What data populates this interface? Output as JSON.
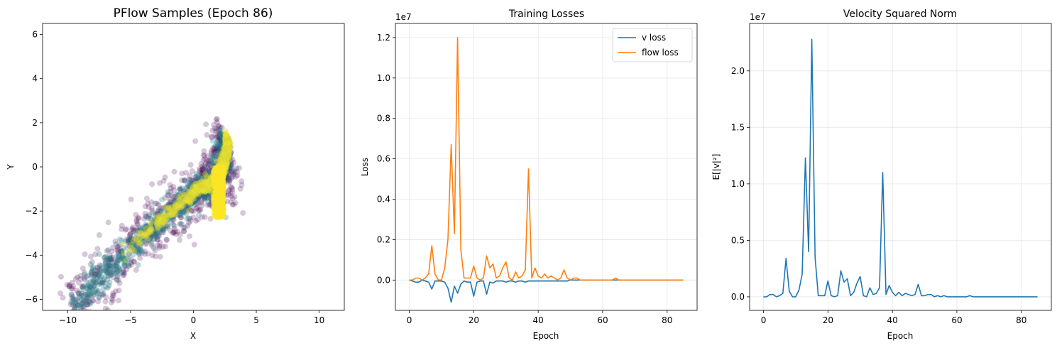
{
  "figure": {
    "background": "#ffffff"
  },
  "chart_data": [
    {
      "type": "scatter",
      "title": "PFlow Samples (Epoch 86)",
      "xlabel": "X",
      "ylabel": "Y",
      "xlim": [
        -12,
        12
      ],
      "ylim": [
        -6.5,
        6.5
      ],
      "xticks": [
        -10,
        -5,
        0,
        5,
        10
      ],
      "yticks": [
        -6,
        -4,
        -2,
        0,
        2,
        4,
        6
      ],
      "grid": false,
      "colormap": "viridis",
      "colors": {
        "low": "#440154",
        "mid": "#21918c",
        "high": "#fde725"
      },
      "band": {
        "centers": [
          [
            -9.5,
            -6.6
          ],
          [
            -7.0,
            -4.8
          ],
          [
            -4.5,
            -3.4
          ],
          [
            -2.0,
            -2.2
          ],
          [
            0.0,
            -1.2
          ],
          [
            1.4,
            -0.8
          ],
          [
            2.0,
            -0.3
          ],
          [
            2.4,
            0.5
          ],
          [
            2.5,
            1.2
          ]
        ],
        "width": 1.3
      }
    },
    {
      "type": "line",
      "title": "Training Losses",
      "xlabel": "Epoch",
      "ylabel": "Loss",
      "offset_text": "1e7",
      "xlim": [
        -4.3,
        89.3
      ],
      "ylim": [
        -0.15,
        1.27
      ],
      "xticks": [
        0,
        20,
        40,
        60,
        80
      ],
      "yticks": [
        0.0,
        0.2,
        0.4,
        0.6,
        0.8,
        1.0,
        1.2
      ],
      "ytick_labels": [
        "0.0",
        "0.2",
        "0.4",
        "0.6",
        "0.8",
        "1.0",
        "1.2"
      ],
      "grid": true,
      "legend": {
        "position": "top-right",
        "entries": [
          "v loss",
          "flow loss"
        ]
      },
      "x": [
        0,
        1,
        2,
        3,
        4,
        5,
        6,
        7,
        8,
        9,
        10,
        11,
        12,
        13,
        14,
        15,
        16,
        17,
        18,
        19,
        20,
        21,
        22,
        23,
        24,
        25,
        26,
        27,
        28,
        29,
        30,
        31,
        32,
        33,
        34,
        35,
        36,
        37,
        38,
        39,
        40,
        41,
        42,
        43,
        44,
        45,
        46,
        47,
        48,
        49,
        50,
        51,
        52,
        53,
        54,
        55,
        56,
        57,
        58,
        59,
        60,
        61,
        62,
        63,
        64,
        65,
        66,
        67,
        68,
        69,
        70,
        71,
        72,
        73,
        74,
        75,
        76,
        77,
        78,
        79,
        80,
        81,
        82,
        83,
        84,
        85
      ],
      "series": [
        {
          "name": "v loss",
          "color": "#1f77b4",
          "values": [
            0,
            -0.005,
            -0.01,
            -0.01,
            0,
            -0.005,
            -0.01,
            -0.045,
            -0.005,
            -0.005,
            -0.005,
            -0.01,
            -0.04,
            -0.11,
            -0.03,
            -0.065,
            -0.02,
            -0.005,
            -0.01,
            -0.01,
            -0.08,
            -0.01,
            -0.005,
            -0.005,
            -0.07,
            -0.01,
            -0.015,
            -0.005,
            -0.005,
            -0.005,
            -0.01,
            -0.005,
            -0.005,
            -0.01,
            -0.005,
            -0.005,
            -0.01,
            -0.005,
            -0.005,
            -0.005,
            -0.005,
            -0.005,
            -0.005,
            -0.005,
            -0.005,
            -0.005,
            -0.005,
            -0.005,
            -0.005,
            -0.005,
            0,
            0,
            0,
            0,
            0,
            0,
            0,
            0,
            0,
            0,
            0,
            0,
            0,
            0,
            0,
            0,
            0,
            0,
            0,
            0,
            0,
            0,
            0,
            0,
            0,
            0,
            0,
            0,
            0,
            0,
            0,
            0,
            0,
            0,
            0,
            0
          ]
        },
        {
          "name": "flow loss",
          "color": "#ff7f0e",
          "values": [
            0,
            0,
            0.01,
            0.01,
            0,
            0.01,
            0.03,
            0.17,
            0.03,
            0,
            0,
            0.06,
            0.2,
            0.67,
            0.23,
            1.2,
            0.15,
            0.01,
            0.01,
            0.01,
            0.07,
            0.01,
            0,
            0.01,
            0.12,
            0.06,
            0.08,
            0.01,
            0.02,
            0.06,
            0.09,
            0.01,
            0,
            0.04,
            0.01,
            0.02,
            0.05,
            0.55,
            0.01,
            0.06,
            0.02,
            0.01,
            0.03,
            0.01,
            0.02,
            0.01,
            0,
            0.01,
            0.05,
            0.01,
            0,
            0.01,
            0.01,
            0,
            0,
            0,
            0,
            0,
            0,
            0,
            0,
            0,
            0,
            0,
            0.01,
            0,
            0,
            0,
            0,
            0,
            0,
            0,
            0,
            0,
            0,
            0,
            0,
            0,
            0,
            0,
            0,
            0,
            0,
            0,
            0,
            0
          ]
        }
      ]
    },
    {
      "type": "line",
      "title": "Velocity Squared Norm",
      "xlabel": "Epoch",
      "ylabel": "E[|v|²]",
      "offset_text": "1e7",
      "xlim": [
        -4.3,
        89.3
      ],
      "ylim": [
        -0.12,
        2.42
      ],
      "xticks": [
        0,
        20,
        40,
        60,
        80
      ],
      "yticks": [
        0.0,
        0.5,
        1.0,
        1.5,
        2.0
      ],
      "ytick_labels": [
        "0.0",
        "0.5",
        "1.0",
        "1.5",
        "2.0"
      ],
      "grid": true,
      "x": [
        0,
        1,
        2,
        3,
        4,
        5,
        6,
        7,
        8,
        9,
        10,
        11,
        12,
        13,
        14,
        15,
        16,
        17,
        18,
        19,
        20,
        21,
        22,
        23,
        24,
        25,
        26,
        27,
        28,
        29,
        30,
        31,
        32,
        33,
        34,
        35,
        36,
        37,
        38,
        39,
        40,
        41,
        42,
        43,
        44,
        45,
        46,
        47,
        48,
        49,
        50,
        51,
        52,
        53,
        54,
        55,
        56,
        57,
        58,
        59,
        60,
        61,
        62,
        63,
        64,
        65,
        66,
        67,
        68,
        69,
        70,
        71,
        72,
        73,
        74,
        75,
        76,
        77,
        78,
        79,
        80,
        81,
        82,
        83,
        84,
        85
      ],
      "series": [
        {
          "name": "E[|v|²]",
          "color": "#1f77b4",
          "values": [
            0,
            0,
            0.02,
            0.02,
            0,
            0.01,
            0.03,
            0.34,
            0.05,
            0,
            0,
            0.06,
            0.2,
            1.23,
            0.4,
            2.28,
            0.35,
            0.01,
            0.01,
            0.01,
            0.14,
            0.01,
            0,
            0.01,
            0.23,
            0.13,
            0.16,
            0.01,
            0.04,
            0.12,
            0.18,
            0.01,
            0,
            0.08,
            0.02,
            0.03,
            0.08,
            1.1,
            0.02,
            0.1,
            0.04,
            0.01,
            0.04,
            0.01,
            0.03,
            0.02,
            0.01,
            0.02,
            0.11,
            0.01,
            0.01,
            0.02,
            0.02,
            0,
            0.01,
            0,
            0.01,
            0,
            0,
            0,
            0,
            0,
            0,
            0,
            0.01,
            0,
            0,
            0,
            0,
            0,
            0,
            0,
            0,
            0,
            0,
            0,
            0,
            0,
            0,
            0,
            0,
            0,
            0,
            0,
            0,
            0
          ]
        }
      ]
    }
  ]
}
